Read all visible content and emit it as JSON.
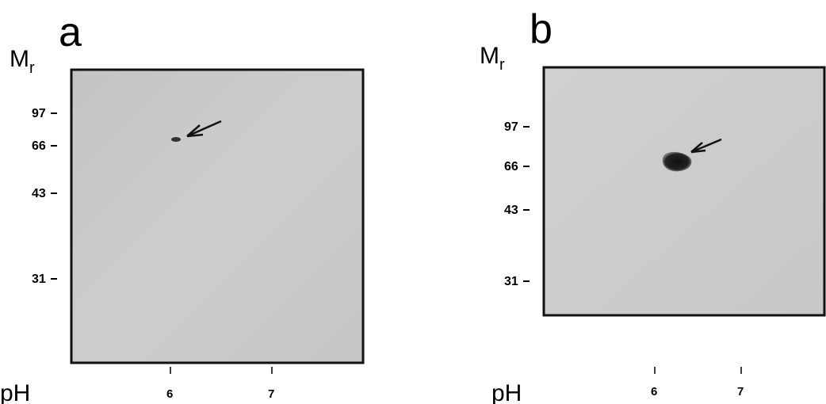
{
  "panels": [
    {
      "label": "a",
      "mr": {
        "main": "M",
        "sub": "r"
      },
      "markers": [
        "97",
        "66",
        "43",
        "31"
      ],
      "ph_label": "pH",
      "ph_ticks": [
        "6",
        "7"
      ]
    },
    {
      "label": "b",
      "mr": {
        "main": "M",
        "sub": "r"
      },
      "markers": [
        "97",
        "66",
        "43",
        "31"
      ],
      "ph_label": "pH",
      "ph_ticks": [
        "6",
        "7"
      ]
    }
  ]
}
